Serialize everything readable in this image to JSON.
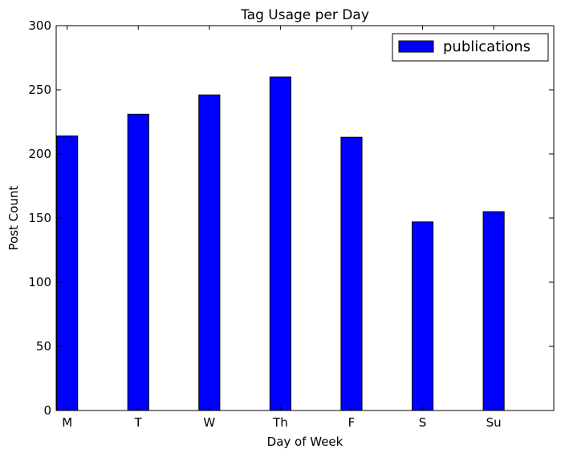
{
  "chart_data": {
    "type": "bar",
    "title": "Tag Usage per Day",
    "xlabel": "Day of Week",
    "ylabel": "Post Count",
    "categories": [
      "M",
      "T",
      "W",
      "Th",
      "F",
      "S",
      "Su"
    ],
    "series": [
      {
        "name": "publications",
        "color": "#0000ff",
        "values": [
          214,
          231,
          246,
          260,
          213,
          147,
          155
        ]
      }
    ],
    "ylim": [
      0,
      300
    ],
    "yticks": [
      "0",
      "50",
      "100",
      "150",
      "200",
      "250",
      "300"
    ],
    "legend_position": "top-right",
    "grid": false
  }
}
